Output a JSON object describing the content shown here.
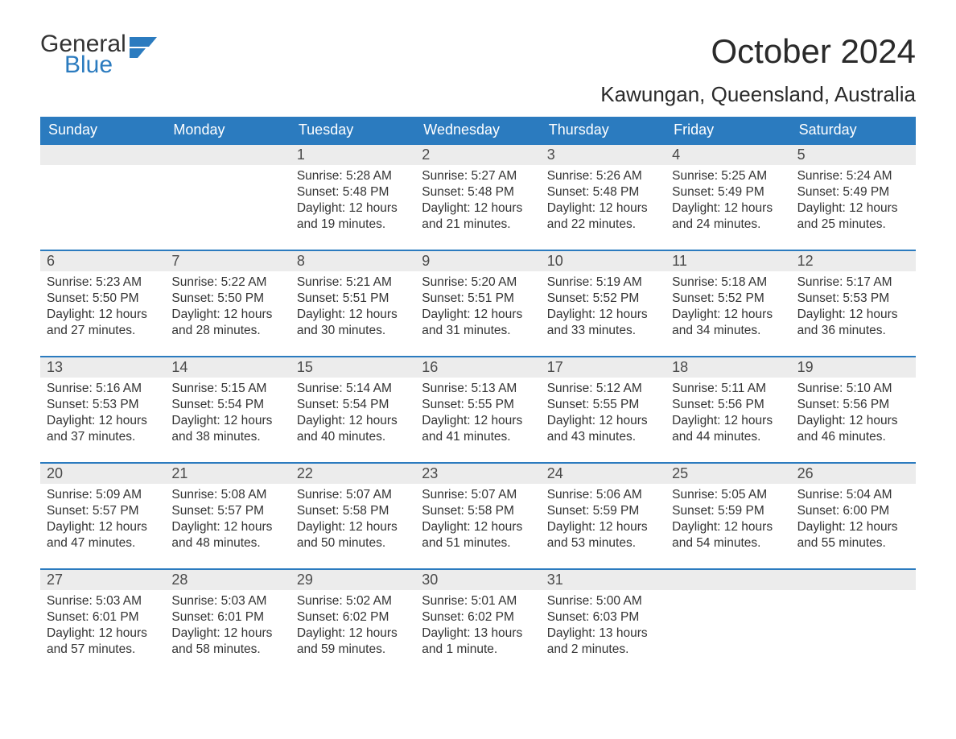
{
  "logo": {
    "word1": "General",
    "word2": "Blue",
    "flag_color": "#2b7bbf"
  },
  "title": "October 2024",
  "location": "Kawungan, Queensland, Australia",
  "colors": {
    "header_bg": "#2b7bbf",
    "header_fg": "#ffffff",
    "daynum_bg": "#ececec",
    "row_divider": "#2b7bbf",
    "text": "#333333",
    "background": "#ffffff"
  },
  "layout": {
    "columns": 7,
    "rows": 5,
    "title_fontsize": 42,
    "location_fontsize": 26,
    "weekday_fontsize": 18,
    "daynum_fontsize": 18,
    "body_fontsize": 15.5
  },
  "weekdays": [
    "Sunday",
    "Monday",
    "Tuesday",
    "Wednesday",
    "Thursday",
    "Friday",
    "Saturday"
  ],
  "weeks": [
    [
      null,
      null,
      {
        "n": "1",
        "sunrise": "Sunrise: 5:28 AM",
        "sunset": "Sunset: 5:48 PM",
        "d1": "Daylight: 12 hours",
        "d2": "and 19 minutes."
      },
      {
        "n": "2",
        "sunrise": "Sunrise: 5:27 AM",
        "sunset": "Sunset: 5:48 PM",
        "d1": "Daylight: 12 hours",
        "d2": "and 21 minutes."
      },
      {
        "n": "3",
        "sunrise": "Sunrise: 5:26 AM",
        "sunset": "Sunset: 5:48 PM",
        "d1": "Daylight: 12 hours",
        "d2": "and 22 minutes."
      },
      {
        "n": "4",
        "sunrise": "Sunrise: 5:25 AM",
        "sunset": "Sunset: 5:49 PM",
        "d1": "Daylight: 12 hours",
        "d2": "and 24 minutes."
      },
      {
        "n": "5",
        "sunrise": "Sunrise: 5:24 AM",
        "sunset": "Sunset: 5:49 PM",
        "d1": "Daylight: 12 hours",
        "d2": "and 25 minutes."
      }
    ],
    [
      {
        "n": "6",
        "sunrise": "Sunrise: 5:23 AM",
        "sunset": "Sunset: 5:50 PM",
        "d1": "Daylight: 12 hours",
        "d2": "and 27 minutes."
      },
      {
        "n": "7",
        "sunrise": "Sunrise: 5:22 AM",
        "sunset": "Sunset: 5:50 PM",
        "d1": "Daylight: 12 hours",
        "d2": "and 28 minutes."
      },
      {
        "n": "8",
        "sunrise": "Sunrise: 5:21 AM",
        "sunset": "Sunset: 5:51 PM",
        "d1": "Daylight: 12 hours",
        "d2": "and 30 minutes."
      },
      {
        "n": "9",
        "sunrise": "Sunrise: 5:20 AM",
        "sunset": "Sunset: 5:51 PM",
        "d1": "Daylight: 12 hours",
        "d2": "and 31 minutes."
      },
      {
        "n": "10",
        "sunrise": "Sunrise: 5:19 AM",
        "sunset": "Sunset: 5:52 PM",
        "d1": "Daylight: 12 hours",
        "d2": "and 33 minutes."
      },
      {
        "n": "11",
        "sunrise": "Sunrise: 5:18 AM",
        "sunset": "Sunset: 5:52 PM",
        "d1": "Daylight: 12 hours",
        "d2": "and 34 minutes."
      },
      {
        "n": "12",
        "sunrise": "Sunrise: 5:17 AM",
        "sunset": "Sunset: 5:53 PM",
        "d1": "Daylight: 12 hours",
        "d2": "and 36 minutes."
      }
    ],
    [
      {
        "n": "13",
        "sunrise": "Sunrise: 5:16 AM",
        "sunset": "Sunset: 5:53 PM",
        "d1": "Daylight: 12 hours",
        "d2": "and 37 minutes."
      },
      {
        "n": "14",
        "sunrise": "Sunrise: 5:15 AM",
        "sunset": "Sunset: 5:54 PM",
        "d1": "Daylight: 12 hours",
        "d2": "and 38 minutes."
      },
      {
        "n": "15",
        "sunrise": "Sunrise: 5:14 AM",
        "sunset": "Sunset: 5:54 PM",
        "d1": "Daylight: 12 hours",
        "d2": "and 40 minutes."
      },
      {
        "n": "16",
        "sunrise": "Sunrise: 5:13 AM",
        "sunset": "Sunset: 5:55 PM",
        "d1": "Daylight: 12 hours",
        "d2": "and 41 minutes."
      },
      {
        "n": "17",
        "sunrise": "Sunrise: 5:12 AM",
        "sunset": "Sunset: 5:55 PM",
        "d1": "Daylight: 12 hours",
        "d2": "and 43 minutes."
      },
      {
        "n": "18",
        "sunrise": "Sunrise: 5:11 AM",
        "sunset": "Sunset: 5:56 PM",
        "d1": "Daylight: 12 hours",
        "d2": "and 44 minutes."
      },
      {
        "n": "19",
        "sunrise": "Sunrise: 5:10 AM",
        "sunset": "Sunset: 5:56 PM",
        "d1": "Daylight: 12 hours",
        "d2": "and 46 minutes."
      }
    ],
    [
      {
        "n": "20",
        "sunrise": "Sunrise: 5:09 AM",
        "sunset": "Sunset: 5:57 PM",
        "d1": "Daylight: 12 hours",
        "d2": "and 47 minutes."
      },
      {
        "n": "21",
        "sunrise": "Sunrise: 5:08 AM",
        "sunset": "Sunset: 5:57 PM",
        "d1": "Daylight: 12 hours",
        "d2": "and 48 minutes."
      },
      {
        "n": "22",
        "sunrise": "Sunrise: 5:07 AM",
        "sunset": "Sunset: 5:58 PM",
        "d1": "Daylight: 12 hours",
        "d2": "and 50 minutes."
      },
      {
        "n": "23",
        "sunrise": "Sunrise: 5:07 AM",
        "sunset": "Sunset: 5:58 PM",
        "d1": "Daylight: 12 hours",
        "d2": "and 51 minutes."
      },
      {
        "n": "24",
        "sunrise": "Sunrise: 5:06 AM",
        "sunset": "Sunset: 5:59 PM",
        "d1": "Daylight: 12 hours",
        "d2": "and 53 minutes."
      },
      {
        "n": "25",
        "sunrise": "Sunrise: 5:05 AM",
        "sunset": "Sunset: 5:59 PM",
        "d1": "Daylight: 12 hours",
        "d2": "and 54 minutes."
      },
      {
        "n": "26",
        "sunrise": "Sunrise: 5:04 AM",
        "sunset": "Sunset: 6:00 PM",
        "d1": "Daylight: 12 hours",
        "d2": "and 55 minutes."
      }
    ],
    [
      {
        "n": "27",
        "sunrise": "Sunrise: 5:03 AM",
        "sunset": "Sunset: 6:01 PM",
        "d1": "Daylight: 12 hours",
        "d2": "and 57 minutes."
      },
      {
        "n": "28",
        "sunrise": "Sunrise: 5:03 AM",
        "sunset": "Sunset: 6:01 PM",
        "d1": "Daylight: 12 hours",
        "d2": "and 58 minutes."
      },
      {
        "n": "29",
        "sunrise": "Sunrise: 5:02 AM",
        "sunset": "Sunset: 6:02 PM",
        "d1": "Daylight: 12 hours",
        "d2": "and 59 minutes."
      },
      {
        "n": "30",
        "sunrise": "Sunrise: 5:01 AM",
        "sunset": "Sunset: 6:02 PM",
        "d1": "Daylight: 13 hours",
        "d2": "and 1 minute."
      },
      {
        "n": "31",
        "sunrise": "Sunrise: 5:00 AM",
        "sunset": "Sunset: 6:03 PM",
        "d1": "Daylight: 13 hours",
        "d2": "and 2 minutes."
      },
      null,
      null
    ]
  ]
}
